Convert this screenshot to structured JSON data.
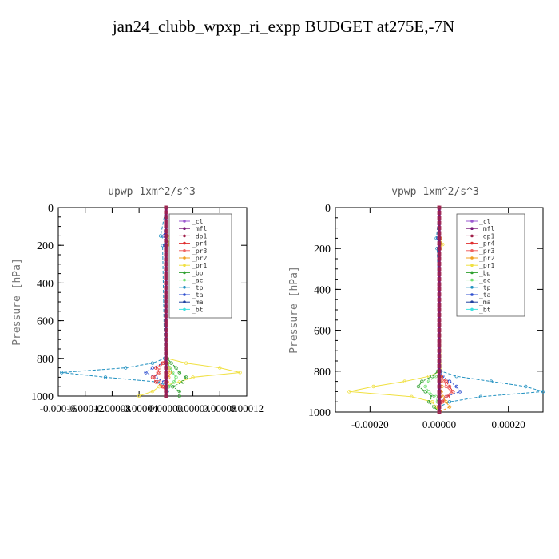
{
  "title": "jan24_clubb_wpxp_ri_expp  BUDGET at275E,-7N",
  "legend_entries": [
    "_cl",
    "_mfl",
    "_dp1",
    "_pr4",
    "_pr3",
    "_pr2",
    "_pr1",
    "_bp",
    "_ac",
    "_tp",
    "_ta",
    "_ma",
    "_bt"
  ],
  "series_colors": {
    "_cl": "#9b59d0",
    "_mfl": "#7a1a7a",
    "_dp1": "#a0204a",
    "_pr4": "#e03030",
    "_pr3": "#f06060",
    "_pr2": "#f0a020",
    "_pr1": "#f0e040",
    "_bp": "#30a030",
    "_ac": "#70e070",
    "_tp": "#2090c0",
    "_ta": "#3050d0",
    "_ma": "#2040a0",
    "_bt": "#40e0e0"
  },
  "chart_data": [
    {
      "type": "line",
      "title": "upwp   1xm^2/s^3",
      "ylabel": "Pressure [hPa]",
      "ylim": [
        1000,
        0
      ],
      "xlim": [
        -0.00016,
        0.00012
      ],
      "yticks": [
        0,
        200,
        400,
        600,
        800,
        1000
      ],
      "ytick_labels": [
        "0",
        "200",
        "400",
        "600",
        "800",
        "1000"
      ],
      "xticks": [
        -0.00016,
        -0.00012,
        -8e-05,
        -4e-05,
        0.0,
        4e-05,
        8e-05,
        0.00012
      ],
      "xtick_labels": [
        "-0.00016",
        "-0.00012",
        "-0.00008",
        "-0.00004",
        "0.00000",
        "0.00004",
        "0.00008",
        "0.00012"
      ],
      "legend": "top-right",
      "y": [
        0,
        150,
        180,
        200,
        800,
        825,
        850,
        875,
        900,
        925,
        950,
        975,
        1000
      ],
      "series": [
        {
          "name": "_pr1",
          "values": [
            0,
            0,
            1e-05,
            0,
            2e-06,
            3e-05,
            8e-05,
            0.00011,
            4e-05,
            2e-05,
            -1e-05,
            -2e-05,
            -4e-05
          ]
        },
        {
          "name": "_tp",
          "values": [
            0,
            -8e-06,
            0,
            -5e-06,
            -2e-06,
            -2e-05,
            -6e-05,
            -0.000155,
            -9e-05,
            -1.2e-05,
            4e-06,
            2e-06,
            0
          ]
        },
        {
          "name": "_ta",
          "values": [
            0,
            -3e-06,
            0,
            -2e-06,
            0,
            -5e-06,
            -2e-05,
            -3e-05,
            -1.5e-05,
            -3e-06,
            0,
            0,
            0
          ]
        },
        {
          "name": "_pr4",
          "values": [
            0,
            0,
            0,
            0,
            0,
            -5e-06,
            -1.5e-05,
            -1e-05,
            -2e-05,
            -1.5e-05,
            -5e-06,
            0,
            0
          ]
        },
        {
          "name": "_pr3",
          "values": [
            0,
            0,
            0,
            0,
            0,
            -4e-06,
            -1e-05,
            -1.2e-05,
            -1.8e-05,
            -1e-05,
            -4e-06,
            0,
            0
          ]
        },
        {
          "name": "_bp",
          "values": [
            0,
            0,
            0,
            0,
            2e-06,
            8e-06,
            1.5e-05,
            2e-05,
            3e-05,
            2.5e-05,
            1e-05,
            2e-05,
            2e-05
          ]
        },
        {
          "name": "_ac",
          "values": [
            0,
            0,
            0,
            0,
            0,
            3e-06,
            6e-06,
            1e-05,
            1.5e-05,
            1.2e-05,
            4e-06,
            0,
            0
          ]
        },
        {
          "name": "_pr2",
          "values": [
            0,
            2e-06,
            4e-06,
            2e-06,
            0,
            2e-06,
            4e-06,
            6e-06,
            4e-06,
            2e-06,
            0,
            0,
            0
          ]
        },
        {
          "name": "_bt",
          "values": [
            0,
            0,
            0,
            0,
            0,
            0,
            0,
            0,
            0,
            0,
            0,
            0,
            0
          ]
        },
        {
          "name": "_dp1",
          "values": [
            0,
            0,
            0,
            0,
            0,
            0,
            0,
            0,
            0,
            0,
            0,
            0,
            0
          ]
        },
        {
          "name": "_mfl",
          "values": [
            0,
            0,
            0,
            0,
            0,
            0,
            0,
            0,
            0,
            0,
            0,
            0,
            0
          ]
        }
      ]
    },
    {
      "type": "line",
      "title": "vpwp   1xm^2/s^3",
      "ylabel": "Pressure [hPa]",
      "ylim": [
        1000,
        0
      ],
      "xlim": [
        -0.0003,
        0.0003
      ],
      "yticks": [
        0,
        200,
        400,
        600,
        800,
        1000
      ],
      "ytick_labels": [
        "0",
        "200",
        "400",
        "600",
        "800",
        "1000"
      ],
      "xticks": [
        -0.0002,
        0.0,
        0.0002
      ],
      "xtick_labels": [
        "-0.00020",
        "0.00000",
        "0.00020"
      ],
      "legend": "top-right",
      "y": [
        0,
        150,
        180,
        200,
        800,
        825,
        850,
        875,
        900,
        925,
        950,
        975,
        1000
      ],
      "series": [
        {
          "name": "_pr1",
          "values": [
            0,
            0,
            1e-05,
            0,
            5e-06,
            -3e-05,
            -0.0001,
            -0.00019,
            -0.00026,
            -8e-05,
            -2e-05,
            -1e-05,
            0
          ]
        },
        {
          "name": "_tp",
          "values": [
            0,
            -8e-06,
            0,
            -6e-06,
            5e-06,
            5e-05,
            0.00015,
            0.00025,
            0.0003,
            0.00012,
            3e-05,
            0,
            0
          ]
        },
        {
          "name": "_ta",
          "values": [
            0,
            -3e-06,
            0,
            -2e-06,
            2e-06,
            1e-05,
            3e-05,
            5e-05,
            6e-05,
            2e-05,
            5e-06,
            0,
            0
          ]
        },
        {
          "name": "_bp",
          "values": [
            0,
            0,
            0,
            0,
            -4e-06,
            -2e-05,
            -5e-05,
            -6e-05,
            -4e-05,
            -2e-05,
            -3e-05,
            -1.5e-05,
            0
          ]
        },
        {
          "name": "_ac",
          "values": [
            0,
            0,
            0,
            0,
            -2e-06,
            -1e-05,
            -3e-05,
            -4e-05,
            -3e-05,
            -1e-05,
            -5e-06,
            0,
            0
          ]
        },
        {
          "name": "_pr4",
          "values": [
            0,
            0,
            0,
            0,
            0,
            6e-06,
            2e-05,
            3e-05,
            4e-05,
            2.5e-05,
            1e-05,
            0,
            0
          ]
        },
        {
          "name": "_pr3",
          "values": [
            0,
            0,
            0,
            0,
            0,
            4e-06,
            1.5e-05,
            2e-05,
            3.5e-05,
            2e-05,
            6e-06,
            0,
            0
          ]
        },
        {
          "name": "_pr2",
          "values": [
            0,
            3e-06,
            5e-06,
            3e-06,
            0,
            2e-06,
            5e-06,
            8e-06,
            6e-06,
            1e-05,
            2e-05,
            3e-05,
            0
          ]
        },
        {
          "name": "_dp1",
          "values": [
            0,
            0,
            0,
            0,
            0,
            0,
            0,
            0,
            0,
            0,
            0,
            0,
            0
          ]
        },
        {
          "name": "_mfl",
          "values": [
            0,
            0,
            0,
            0,
            0,
            0,
            0,
            0,
            0,
            0,
            0,
            0,
            0
          ]
        }
      ]
    }
  ]
}
